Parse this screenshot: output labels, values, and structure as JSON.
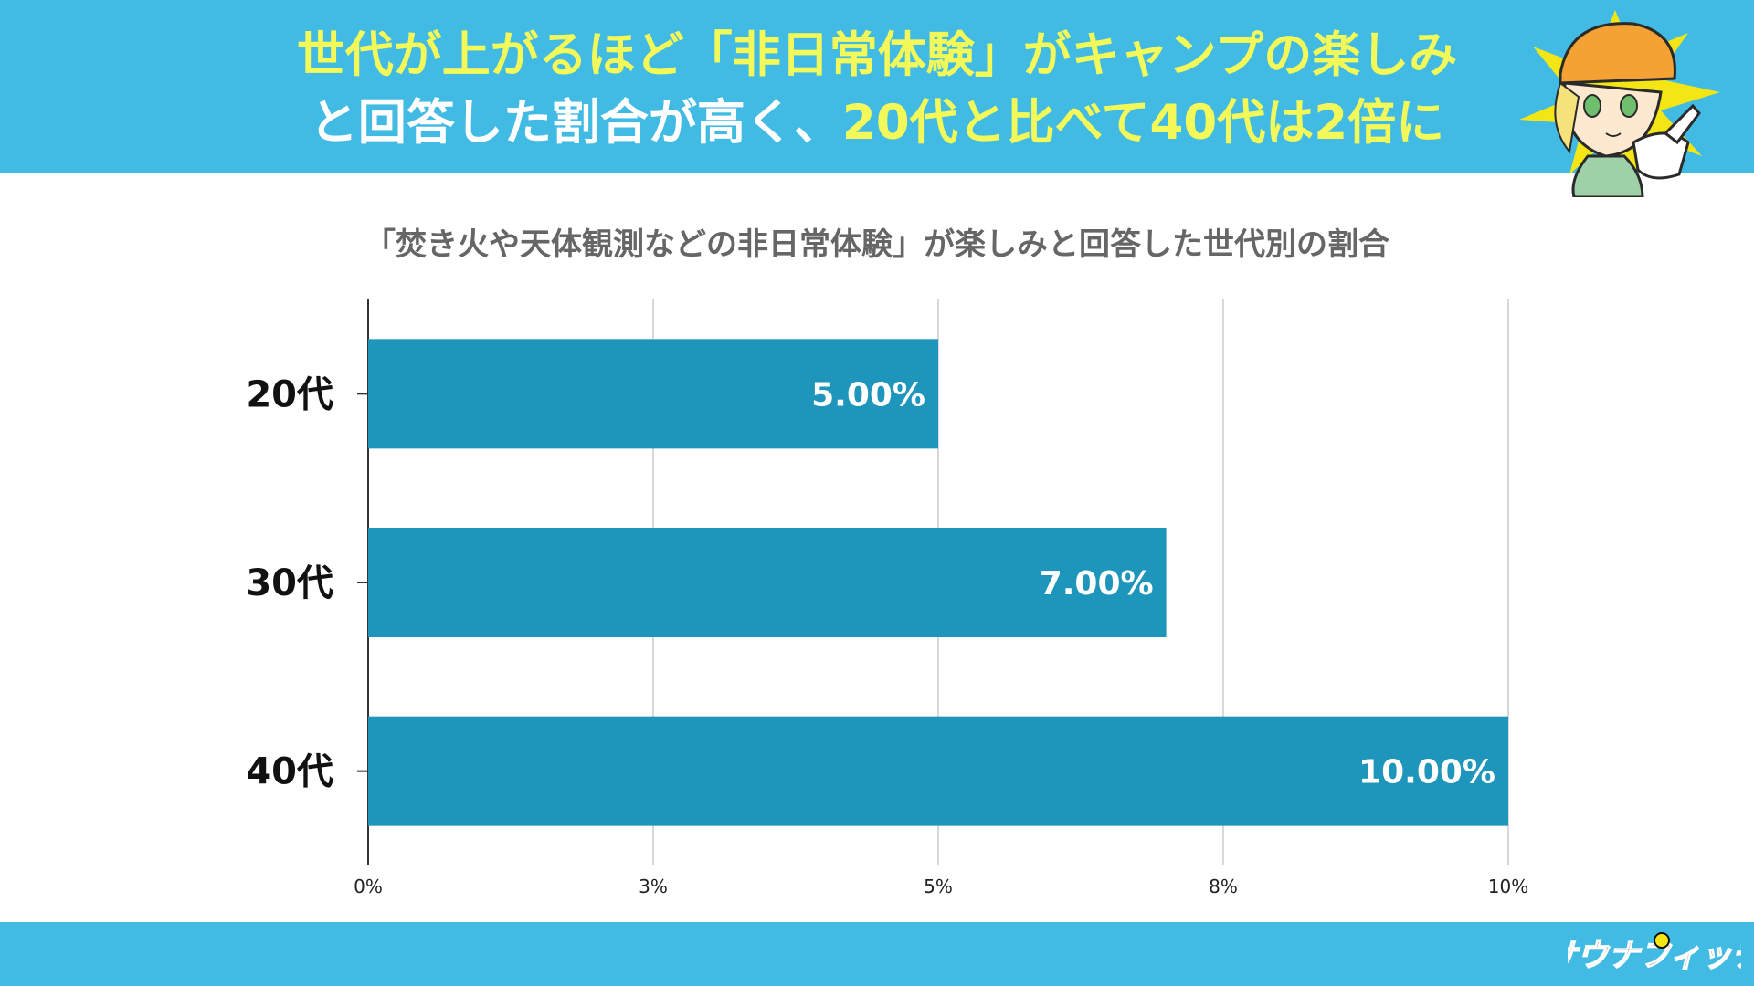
{
  "header": {
    "headline_line1_a": "世代が上がるほど「非日常体験」がキャンプの楽しみ",
    "headline_line2_a": "と回答した割合が高く、",
    "headline_line2_b": "20代と比べて40代は2倍に"
  },
  "colors": {
    "header_bg": "#41bbe3",
    "headline_text": "#ffffff",
    "headline_highlight": "#f4f95a",
    "bar": "#1e96bb",
    "bar_label": "#ffffff",
    "grid": "#cccccc"
  },
  "brand": {
    "logo_text": "サウナフィッチ"
  },
  "chart_data": {
    "type": "bar",
    "orientation": "horizontal",
    "title": "「焚き火や天体観測などの非日常体験」が楽しみと回答した世代別の割合",
    "categories": [
      "20代",
      "30代",
      "40代"
    ],
    "values": [
      5.0,
      7.0,
      10.0
    ],
    "data_labels": [
      "5.00%",
      "7.00%",
      "10.00%"
    ],
    "x_ticks": [
      0,
      2.5,
      5,
      7.5,
      10
    ],
    "x_tick_labels": [
      "0%",
      "3%",
      "5%",
      "8%",
      "10%"
    ],
    "xlim": [
      0,
      10
    ],
    "grid": true,
    "legend": "none"
  }
}
